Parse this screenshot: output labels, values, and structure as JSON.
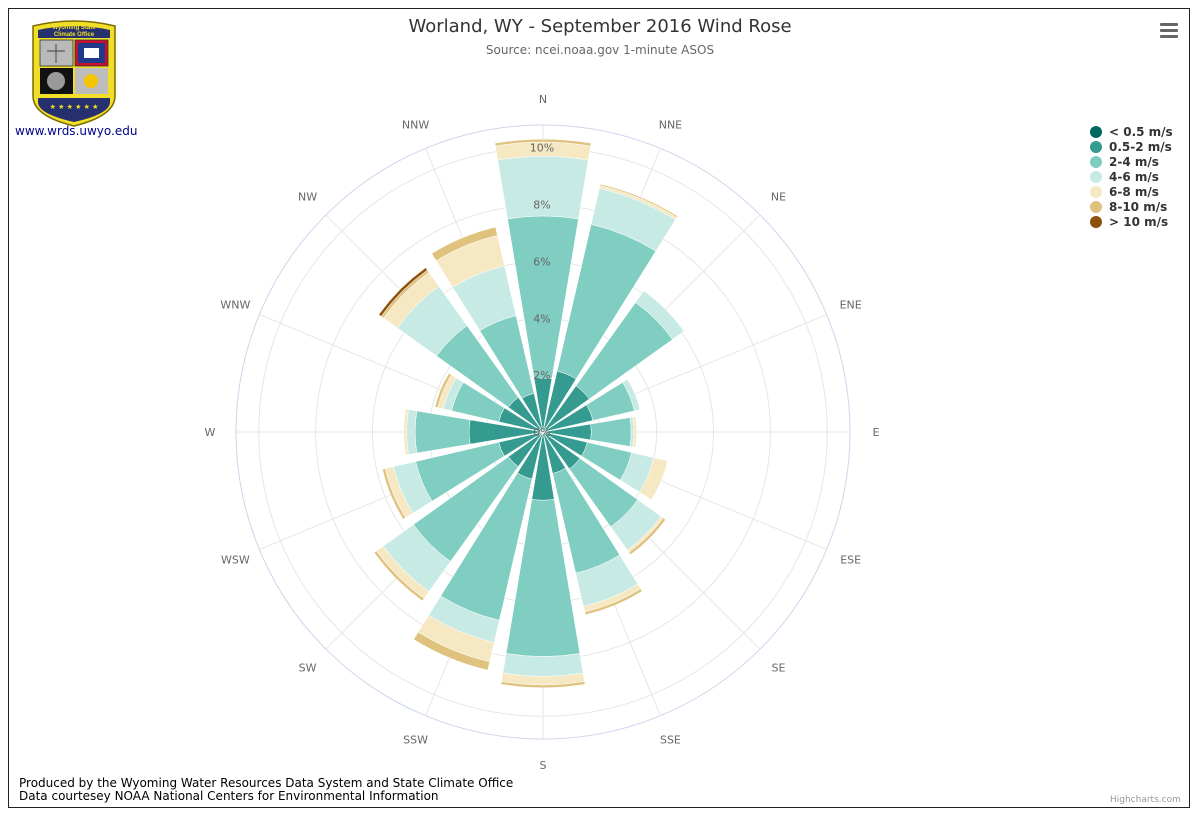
{
  "title": "Worland, WY - September 2016 Wind Rose",
  "subtitle": "Source: ncei.noaa.gov 1-minute ASOS",
  "logo": {
    "text_line1": "Wyoming State",
    "text_line2": "Climate Office",
    "stars": "★ ★ ★ ★ ★ ★"
  },
  "site_url": "www.wrds.uwyo.edu",
  "credits": {
    "line1": "Produced by the Wyoming Water Resources Data System and State Climate Office",
    "line2": "Data courtesey NOAA National Centers for Environmental Information"
  },
  "highcharts_credit": "Highcharts.com",
  "chart_data": {
    "type": "wind-rose",
    "stacking": "radial stacked columns",
    "directions": [
      "N",
      "NNE",
      "NE",
      "ENE",
      "E",
      "ESE",
      "SE",
      "SSE",
      "S",
      "SSW",
      "SW",
      "WSW",
      "W",
      "WNW",
      "NW",
      "NNW"
    ],
    "radial_ticks": [
      "0%",
      "2%",
      "4%",
      "6%",
      "8%",
      "10%"
    ],
    "radial_tick_values": [
      0,
      2,
      4,
      6,
      8,
      10
    ],
    "rmax": 10.8,
    "legend_position": "top-right",
    "series": [
      {
        "name": "< 0.5 m/s",
        "color": "#00685e",
        "values": [
          0,
          0,
          0,
          0,
          0,
          0,
          0,
          0,
          0,
          0,
          0,
          0,
          0,
          0,
          0,
          0
        ]
      },
      {
        "name": "0.5-2 m/s",
        "color": "#359a8f",
        "values": [
          1.9,
          2.2,
          2.0,
          1.8,
          1.7,
          1.6,
          1.6,
          1.5,
          2.4,
          1.7,
          1.5,
          1.6,
          2.6,
          1.6,
          1.5,
          1.4
        ]
      },
      {
        "name": "2-4 m/s",
        "color": "#80cdc1",
        "values": [
          5.7,
          5.3,
          3.6,
          1.5,
          1.4,
          1.6,
          2.5,
          3.6,
          5.5,
          5.1,
          4.1,
          3.0,
          1.9,
          1.7,
          3.1,
          2.8
        ]
      },
      {
        "name": "4-6 m/s",
        "color": "#c7eae4",
        "values": [
          2.1,
          1.3,
          0.5,
          0.2,
          0.1,
          0.8,
          1.0,
          1.2,
          0.7,
          0.8,
          1.3,
          0.8,
          0.3,
          0.3,
          1.7,
          1.8
        ]
      },
      {
        "name": "6-8 m/s",
        "color": "#f6e8c3",
        "values": [
          0.5,
          0.1,
          0,
          0,
          0.1,
          0.5,
          0.1,
          0.2,
          0.3,
          0.7,
          0.3,
          0.3,
          0.1,
          0.2,
          0.6,
          1.1
        ]
      },
      {
        "name": "8-10 m/s",
        "color": "#dfc27d",
        "values": [
          0.1,
          0.05,
          0,
          0,
          0,
          0,
          0.1,
          0.1,
          0.1,
          0.3,
          0.1,
          0.1,
          0,
          0.1,
          0.1,
          0.3
        ]
      },
      {
        "name": "> 10 m/s",
        "color": "#8c510a",
        "values": [
          0,
          0,
          0,
          0,
          0,
          0,
          0,
          0,
          0,
          0,
          0,
          0,
          0,
          0,
          0.1,
          0
        ]
      }
    ]
  }
}
